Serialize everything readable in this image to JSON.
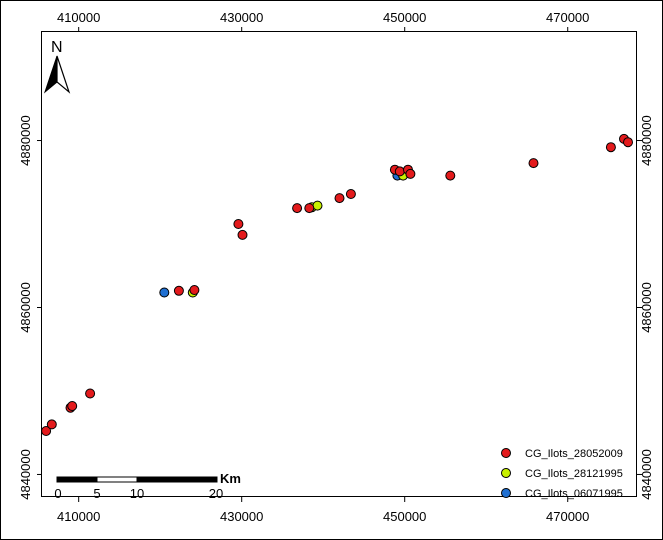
{
  "map": {
    "north_label": "N",
    "x_ticks": [
      410000,
      430000,
      450000,
      470000
    ],
    "x_tick_labels": [
      "410000",
      "430000",
      "450000",
      "470000"
    ],
    "y_ticks": [
      4840000,
      4860000,
      4880000
    ],
    "y_tick_labels": [
      "4840000",
      "4860000",
      "4880000"
    ],
    "xlim": [
      405500,
      478500
    ],
    "ylim": [
      4837300,
      4893000
    ],
    "scale_bar": {
      "unit": "Km",
      "labels": [
        "0",
        "5",
        "10",
        "20"
      ]
    },
    "legend": [
      {
        "label": "CG_Ilots_28052009",
        "color": "#e31a1c"
      },
      {
        "label": "CG_Ilots_28121995",
        "color": "#c8f000"
      },
      {
        "label": "CG_Ilots_06071995",
        "color": "#1f6fd1"
      }
    ]
  },
  "chart_data": {
    "type": "scatter",
    "x_axis_ticks": [
      "410000",
      "430000",
      "450000",
      "470000"
    ],
    "y_axis_ticks": [
      "4840000",
      "4860000",
      "4880000"
    ],
    "xlim": [
      405500,
      478500
    ],
    "ylim": [
      4837300,
      4893000
    ],
    "grid": false,
    "legend_placement": "bottom-right",
    "series": [
      {
        "name": "CG_Ilots_06071995",
        "color": "#1f6fd1",
        "points": [
          [
            420500,
            4861800
          ],
          [
            449100,
            4875800
          ]
        ]
      },
      {
        "name": "CG_Ilots_28121995",
        "color": "#c8f000",
        "points": [
          [
            424000,
            4861800
          ],
          [
            438600,
            4872000
          ],
          [
            439300,
            4872200
          ],
          [
            449800,
            4875800
          ]
        ]
      },
      {
        "name": "CG_Ilots_28052009",
        "color": "#e31a1c",
        "points": [
          [
            406000,
            4845200
          ],
          [
            406700,
            4846000
          ],
          [
            409000,
            4848000
          ],
          [
            409200,
            4848200
          ],
          [
            411400,
            4849700
          ],
          [
            422300,
            4862000
          ],
          [
            424200,
            4862100
          ],
          [
            429600,
            4870000
          ],
          [
            430100,
            4868700
          ],
          [
            436800,
            4871900
          ],
          [
            438300,
            4871900
          ],
          [
            442000,
            4873100
          ],
          [
            443400,
            4873600
          ],
          [
            448800,
            4876500
          ],
          [
            449400,
            4876300
          ],
          [
            450400,
            4876500
          ],
          [
            450700,
            4876000
          ],
          [
            455600,
            4875800
          ],
          [
            465800,
            4877300
          ],
          [
            475300,
            4879200
          ],
          [
            476900,
            4880200
          ],
          [
            477400,
            4879800
          ]
        ]
      }
    ]
  }
}
